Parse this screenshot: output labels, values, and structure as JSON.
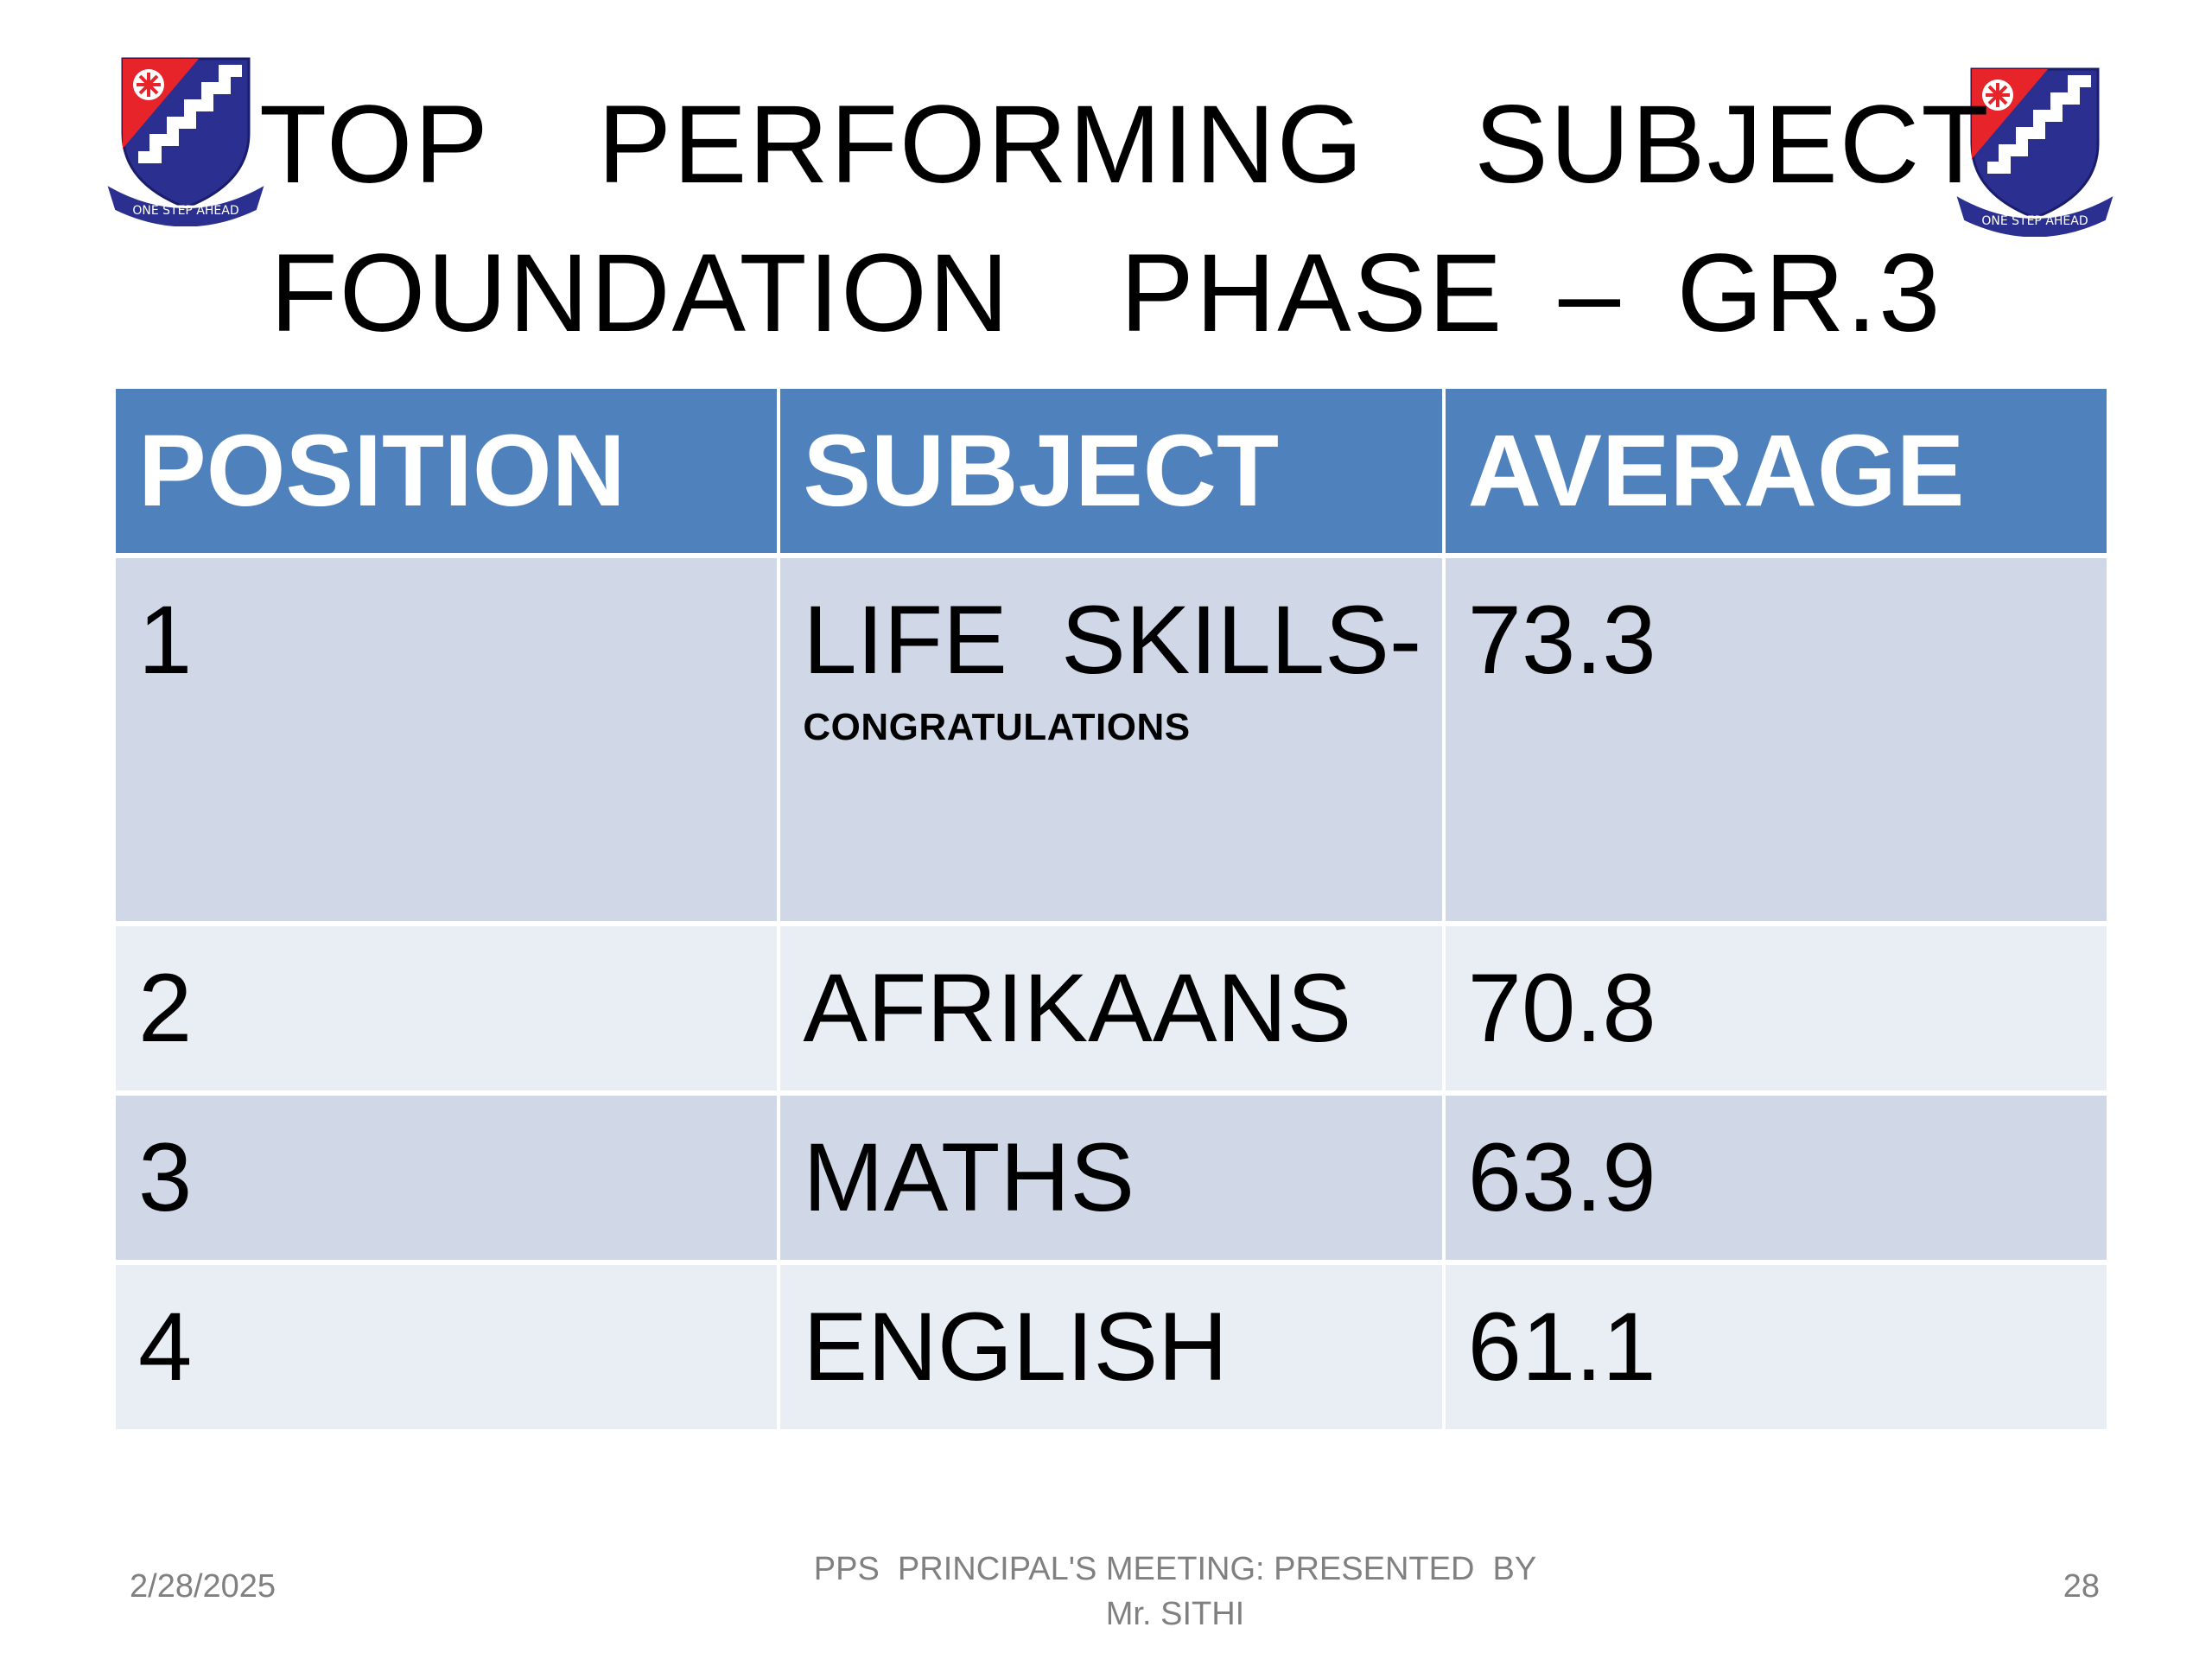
{
  "slide": {
    "title_line1": "TOP  PERFORMING  SUBJECT",
    "title_line2": "FOUNDATION  PHASE – GR.3",
    "crest_motto": "ONE STEP AHEAD",
    "colors": {
      "header_bg": "#4f81bd",
      "row_dark": "#d0d8e8",
      "row_light": "#e9edf4",
      "crest_red": "#e8242b",
      "crest_blue": "#2b2f8f"
    }
  },
  "table": {
    "headers": [
      "POSITION",
      "SUBJECT",
      "AVERAGE"
    ],
    "rows": [
      {
        "position": "1",
        "subject": "LIFE  SKILLS-",
        "note": "CONGRATULATIONS",
        "average": "73.3"
      },
      {
        "position": "2",
        "subject": "AFRIKAANS",
        "average": "70.8"
      },
      {
        "position": "3",
        "subject": "MATHS",
        "average": "63.9"
      },
      {
        "position": "4",
        "subject": "ENGLISH",
        "average": "61.1"
      }
    ]
  },
  "footer": {
    "date": "2/28/2025",
    "center_line1": "PPS  PRINCIPAL'S MEETING: PRESENTED  BY",
    "center_line2": "Mr. SITHI",
    "page": "28"
  }
}
